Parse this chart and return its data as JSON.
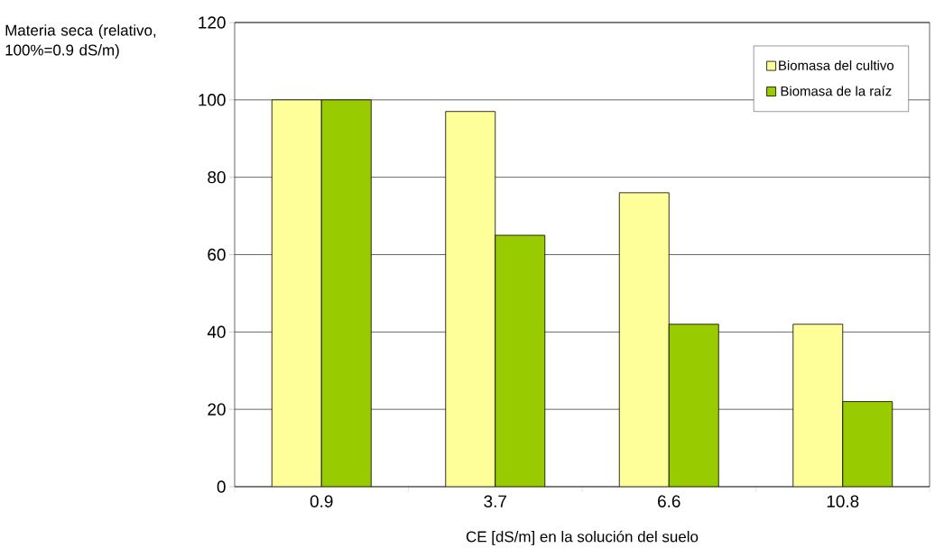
{
  "chart_data": {
    "type": "bar",
    "xlabel": "CE [dS/m] en la solución del suelo",
    "ylabel": "Materia seca (relativo, 100%=0.9 dS/m)",
    "categories": [
      "0.9",
      "3.7",
      "6.6",
      "10.8"
    ],
    "series": [
      {
        "name": "Biomasa del cultivo",
        "color": "#ffff99",
        "values": [
          100,
          97,
          76,
          42
        ]
      },
      {
        "name": "Biomasa de la raíz",
        "color": "#99cc00",
        "values": [
          100,
          65,
          42,
          22
        ]
      }
    ],
    "ylim": [
      0,
      120
    ],
    "yticks": [
      0,
      20,
      40,
      60,
      80,
      100,
      120
    ],
    "grid": "y",
    "legend": "top right"
  }
}
